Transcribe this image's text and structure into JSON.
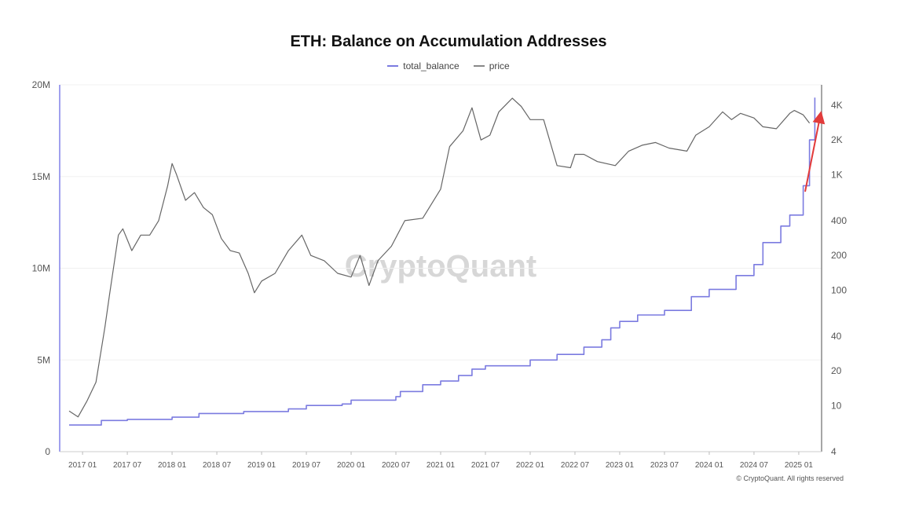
{
  "chart_data": {
    "type": "line",
    "title": "ETH: Balance on Accumulation Addresses",
    "watermark": "CryptoQuant",
    "copyright": "© CryptoQuant. All rights reserved",
    "legend_position": "top-center",
    "y_left": {
      "ticks": [
        "0",
        "5M",
        "10M",
        "15M",
        "20M"
      ],
      "tick_values": [
        0,
        5000000,
        10000000,
        15000000,
        20000000
      ],
      "ylim": [
        0,
        20000000
      ]
    },
    "y_right": {
      "scale": "log",
      "ticks": [
        "4",
        "10",
        "20",
        "40",
        "100",
        "200",
        "400",
        "1K",
        "2K",
        "4K"
      ],
      "tick_values": [
        4,
        10,
        20,
        40,
        100,
        200,
        400,
        1000,
        2000,
        4000
      ],
      "ylim": [
        4,
        6000
      ]
    },
    "x_ticks": [
      "2017 01",
      "2017 07",
      "2018 01",
      "2018 07",
      "2019 01",
      "2019 07",
      "2020 01",
      "2020 07",
      "2021 01",
      "2021 07",
      "2022 01",
      "2022 07",
      "2023 01",
      "2023 07",
      "2024 01",
      "2024 07",
      "2025 01"
    ],
    "series": [
      {
        "name": "total_balance",
        "color": "#7b7be0",
        "axis": "left",
        "x": [
          2016.85,
          2017.0,
          2017.2,
          2017.21,
          2017.5,
          2018.0,
          2018.3,
          2018.8,
          2019.3,
          2019.5,
          2019.9,
          2020.0,
          2020.5,
          2020.55,
          2020.8,
          2021.0,
          2021.2,
          2021.35,
          2021.5,
          2022.0,
          2022.3,
          2022.6,
          2022.8,
          2022.9,
          2023.0,
          2023.2,
          2023.5,
          2023.8,
          2024.0,
          2024.3,
          2024.5,
          2024.6,
          2024.8,
          2024.9,
          2025.05,
          2025.12,
          2025.18
        ],
        "y": [
          1450000,
          1450000,
          1450000,
          1700000,
          1760000,
          1880000,
          2080000,
          2190000,
          2330000,
          2520000,
          2600000,
          2810000,
          3000000,
          3280000,
          3650000,
          3850000,
          4150000,
          4500000,
          4680000,
          5000000,
          5300000,
          5700000,
          6100000,
          6750000,
          7100000,
          7450000,
          7700000,
          8450000,
          8850000,
          9600000,
          10200000,
          11400000,
          12300000,
          12900000,
          14500000,
          17000000,
          19300000
        ]
      },
      {
        "name": "price",
        "color": "#666666",
        "axis": "right",
        "x": [
          2016.85,
          2016.95,
          2017.05,
          2017.15,
          2017.25,
          2017.3,
          2017.4,
          2017.45,
          2017.55,
          2017.65,
          2017.75,
          2017.85,
          2017.95,
          2018.0,
          2018.05,
          2018.15,
          2018.25,
          2018.35,
          2018.45,
          2018.55,
          2018.65,
          2018.75,
          2018.85,
          2018.92,
          2019.0,
          2019.15,
          2019.3,
          2019.45,
          2019.55,
          2019.7,
          2019.85,
          2020.0,
          2020.1,
          2020.2,
          2020.3,
          2020.45,
          2020.6,
          2020.8,
          2021.0,
          2021.1,
          2021.25,
          2021.35,
          2021.45,
          2021.55,
          2021.65,
          2021.8,
          2021.9,
          2022.0,
          2022.15,
          2022.3,
          2022.45,
          2022.5,
          2022.6,
          2022.75,
          2022.95,
          2023.1,
          2023.25,
          2023.4,
          2023.55,
          2023.75,
          2023.85,
          2024.0,
          2024.15,
          2024.25,
          2024.35,
          2024.5,
          2024.6,
          2024.75,
          2024.9,
          2024.95,
          2025.05,
          2025.12
        ],
        "y": [
          9,
          8,
          11,
          16,
          48,
          90,
          300,
          340,
          220,
          300,
          300,
          400,
          800,
          1250,
          1000,
          600,
          700,
          520,
          450,
          280,
          220,
          210,
          140,
          95,
          120,
          140,
          220,
          300,
          200,
          180,
          140,
          130,
          200,
          110,
          180,
          240,
          400,
          420,
          750,
          1750,
          2400,
          3800,
          2000,
          2200,
          3500,
          4600,
          3900,
          3000,
          3000,
          1200,
          1150,
          1500,
          1500,
          1300,
          1200,
          1600,
          1800,
          1900,
          1700,
          1600,
          2200,
          2600,
          3500,
          3000,
          3400,
          3100,
          2600,
          2500,
          3400,
          3600,
          3300,
          2800
        ]
      }
    ]
  }
}
